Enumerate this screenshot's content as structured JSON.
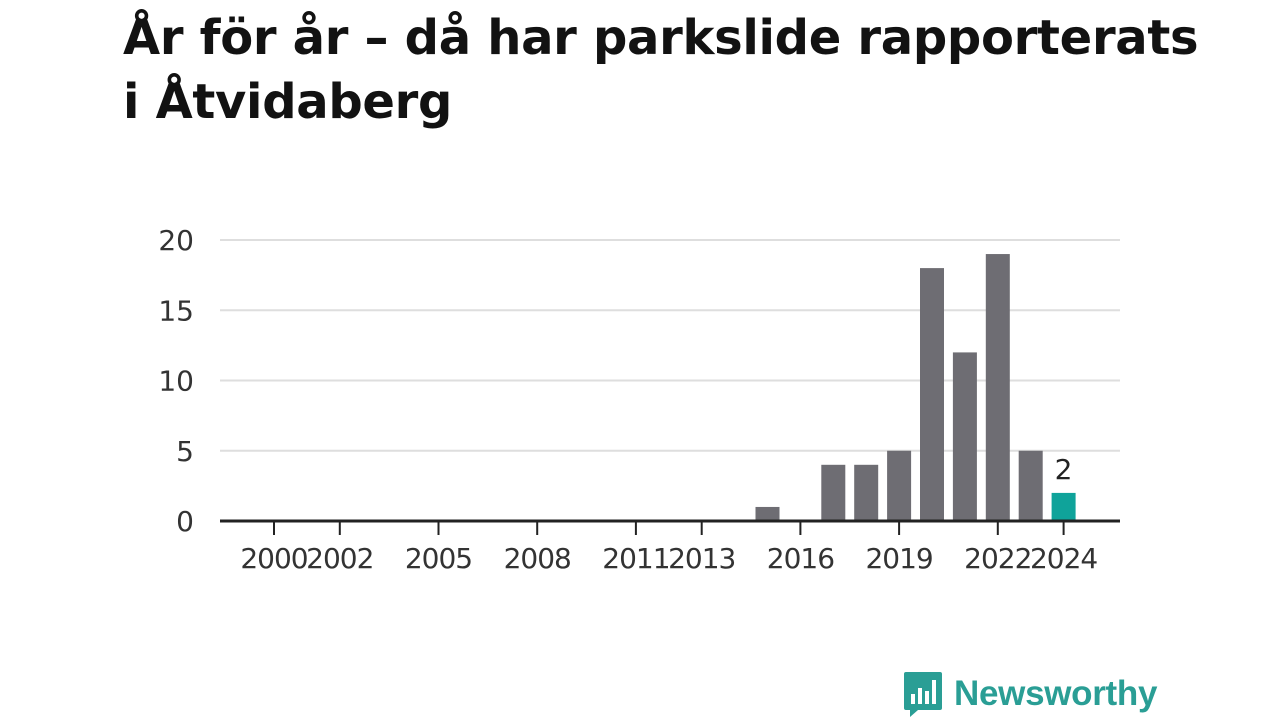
{
  "title": "År för år – då har parkslide rapporterats i Åtvidaberg",
  "brand": {
    "name": "Newsworthy",
    "color": "#2a9e95",
    "icon": "newsworthy-logo-icon"
  },
  "colors": {
    "bar": "#6e6d73",
    "highlight": "#0fa39a",
    "grid": "#dedede",
    "axis": "#222222",
    "text": "#333333"
  },
  "chart_data": {
    "type": "bar",
    "title": "År för år – då har parkslide rapporterats i Åtvidaberg",
    "xlabel": "",
    "ylabel": "",
    "ylim": [
      0,
      20
    ],
    "yticks": [
      0,
      5,
      10,
      15,
      20
    ],
    "xtick_labels": [
      "2000",
      "2002",
      "2005",
      "2008",
      "2011",
      "2013",
      "2016",
      "2019",
      "2022",
      "2024"
    ],
    "categories": [
      "2000",
      "2001",
      "2002",
      "2003",
      "2004",
      "2005",
      "2006",
      "2007",
      "2008",
      "2009",
      "2010",
      "2011",
      "2012",
      "2013",
      "2014",
      "2015",
      "2016",
      "2017",
      "2018",
      "2019",
      "2020",
      "2021",
      "2022",
      "2023",
      "2024"
    ],
    "values": [
      0,
      0,
      0,
      0,
      0,
      0,
      0,
      0,
      0,
      0,
      0,
      0,
      0,
      0,
      0,
      1,
      0,
      4,
      4,
      5,
      18,
      12,
      19,
      5,
      2
    ],
    "highlight": {
      "category": "2024",
      "label": "2"
    },
    "grid": true,
    "legend": "none"
  }
}
